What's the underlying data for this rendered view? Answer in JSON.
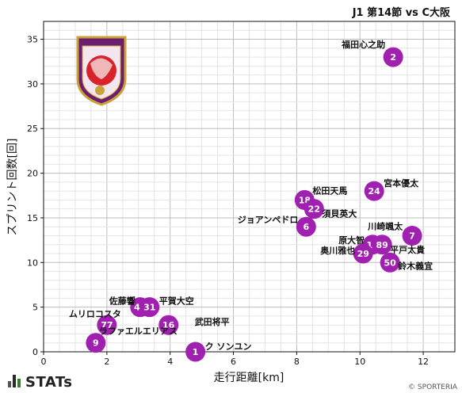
{
  "header": {
    "title": "J1 第14節 vs C大阪"
  },
  "footer": {
    "brand": "STATs",
    "copyright": "© SPORTERIA"
  },
  "logo": {
    "text": "KYOTO SANGA"
  },
  "colors": {
    "bubble": "#a020b0",
    "grid_minor": "#e4e4e4",
    "grid_major": "#bdbdbd"
  },
  "chart_data": {
    "type": "scatter",
    "xlabel": "走行距離[km]",
    "ylabel": "スプリント回数[回]",
    "xlim": [
      0,
      13
    ],
    "ylim": [
      0,
      37
    ],
    "xticks": [
      0,
      2,
      4,
      6,
      8,
      10,
      12
    ],
    "yticks": [
      0,
      5,
      10,
      15,
      20,
      25,
      30,
      35
    ],
    "grid": true,
    "points": [
      {
        "number": "2",
        "name": "福田心之助",
        "x": 11.05,
        "y": 33
      },
      {
        "number": "24",
        "name": "宮本優太",
        "x": 10.45,
        "y": 18
      },
      {
        "number": "18",
        "name": "松田天馬",
        "x": 8.25,
        "y": 17
      },
      {
        "number": "22",
        "name": "須貝英大",
        "x": 8.55,
        "y": 16
      },
      {
        "number": "6",
        "name": "ジョアンペドロ",
        "x": 8.3,
        "y": 14
      },
      {
        "number": "7",
        "name": "川崎颯太",
        "x": 11.65,
        "y": 13
      },
      {
        "number": "14",
        "name": "原大智",
        "x": 10.4,
        "y": 12
      },
      {
        "number": "89",
        "name": "平戸太貴",
        "x": 10.7,
        "y": 12
      },
      {
        "number": "29",
        "name": "奥川雅也",
        "x": 10.1,
        "y": 11
      },
      {
        "number": "50",
        "name": "鈴木義宜",
        "x": 10.95,
        "y": 10
      },
      {
        "number": "44",
        "name": "佐藤響",
        "x": 3.05,
        "y": 5
      },
      {
        "number": "31",
        "name": "平賀大空",
        "x": 3.35,
        "y": 5
      },
      {
        "number": "77",
        "name": "ムリロコスタ",
        "x": 2.0,
        "y": 3
      },
      {
        "number": "16",
        "name": "武田将平",
        "x": 3.95,
        "y": 3
      },
      {
        "number": "9",
        "name": "ラファエルエリアス",
        "x": 1.65,
        "y": 1
      },
      {
        "number": "1",
        "name": "ク ソンユン",
        "x": 4.8,
        "y": 0
      }
    ]
  }
}
